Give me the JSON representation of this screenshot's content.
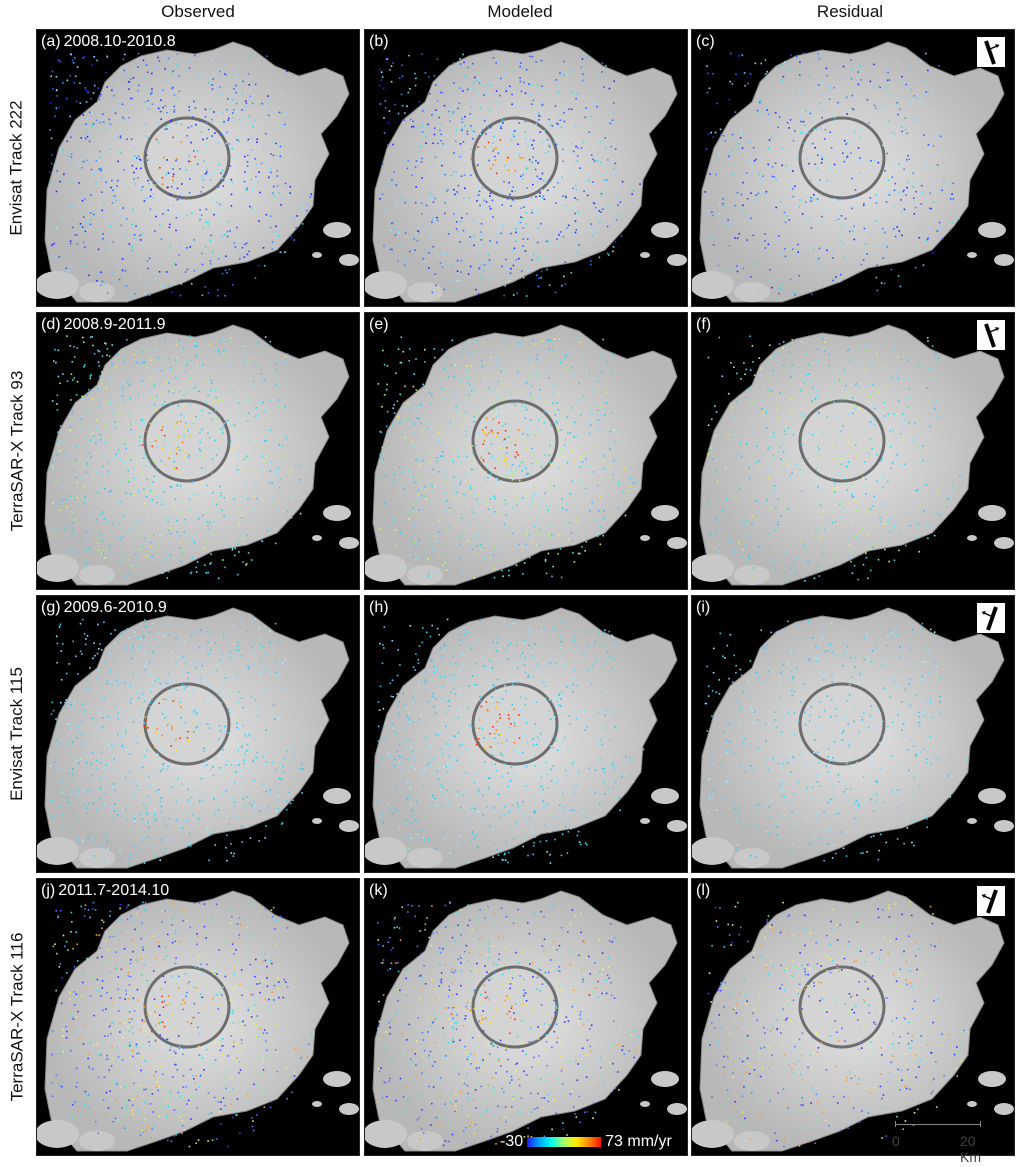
{
  "columns": [
    "Observed",
    "Modeled",
    "Residual"
  ],
  "rows": [
    {
      "label": "Envisat Track 222",
      "panels": [
        {
          "letter": "(a)",
          "date": "2008.10-2010.8"
        },
        {
          "letter": "(b)",
          "date": ""
        },
        {
          "letter": "(c)",
          "date": ""
        }
      ]
    },
    {
      "label": "TerraSAR-X Track 93",
      "panels": [
        {
          "letter": "(d)",
          "date": "2008.9-2011.9"
        },
        {
          "letter": "(e)",
          "date": ""
        },
        {
          "letter": "(f)",
          "date": ""
        }
      ]
    },
    {
      "label": "Envisat Track 115",
      "panels": [
        {
          "letter": "(g)",
          "date": "2009.6-2010.9"
        },
        {
          "letter": "(h)",
          "date": ""
        },
        {
          "letter": "(i)",
          "date": ""
        }
      ]
    },
    {
      "label": "TerraSAR-X Track 116",
      "panels": [
        {
          "letter": "(j)",
          "date": "2011.7-2014.10"
        },
        {
          "letter": "(k)",
          "date": ""
        },
        {
          "letter": "(l)",
          "date": ""
        }
      ]
    }
  ],
  "colorbar": {
    "min": "-30",
    "max": "73 mm/yr"
  },
  "scalebar": {
    "start": "0",
    "end": "20 Km"
  }
}
